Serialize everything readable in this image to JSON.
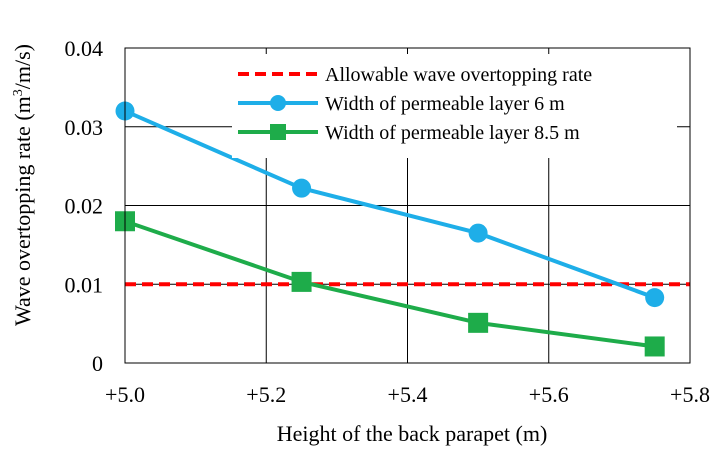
{
  "chart_data": {
    "type": "line",
    "title": "",
    "xlabel": "Height of the back parapet (m)",
    "ylabel_main": "Wave overtopping rate (m",
    "ylabel_sup": "3",
    "ylabel_tail": "/m/s)",
    "xlim": [
      5.0,
      5.8
    ],
    "ylim": [
      0,
      0.04
    ],
    "x_ticks": [
      {
        "value": 5.0,
        "label": "+5.0"
      },
      {
        "value": 5.2,
        "label": "+5.2"
      },
      {
        "value": 5.4,
        "label": "+5.4"
      },
      {
        "value": 5.6,
        "label": "+5.6"
      },
      {
        "value": 5.8,
        "label": "+5.8"
      }
    ],
    "y_ticks": [
      {
        "value": 0,
        "label": "0"
      },
      {
        "value": 0.01,
        "label": "0.01"
      },
      {
        "value": 0.02,
        "label": "0.02"
      },
      {
        "value": 0.03,
        "label": "0.03"
      },
      {
        "value": 0.04,
        "label": "0.04"
      }
    ],
    "grid": true,
    "legend_position": "top-right",
    "series": [
      {
        "name": "Allowable wave overtopping rate",
        "style": "dashed",
        "color": "#ff0000",
        "marker": "none",
        "x": [
          5.0,
          5.8
        ],
        "y": [
          0.01,
          0.01
        ]
      },
      {
        "name": "Width of permeable layer 6 m",
        "style": "solid",
        "color": "#1eaee8",
        "marker": "circle",
        "x": [
          5.0,
          5.25,
          5.5,
          5.75
        ],
        "y": [
          0.032,
          0.0222,
          0.0165,
          0.0083
        ]
      },
      {
        "name": "Width of permeable layer 8.5 m",
        "style": "solid",
        "color": "#1eac4a",
        "marker": "square",
        "x": [
          5.0,
          5.25,
          5.5,
          5.75
        ],
        "y": [
          0.018,
          0.0103,
          0.0051,
          0.0021
        ]
      }
    ]
  }
}
